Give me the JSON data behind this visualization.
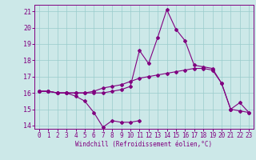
{
  "xlabel": "Windchill (Refroidissement éolien,°C)",
  "xlim": [
    -0.5,
    23.5
  ],
  "ylim": [
    13.8,
    21.4
  ],
  "yticks": [
    14,
    15,
    16,
    17,
    18,
    19,
    20,
    21
  ],
  "xticks": [
    0,
    1,
    2,
    3,
    4,
    5,
    6,
    7,
    8,
    9,
    10,
    11,
    12,
    13,
    14,
    15,
    16,
    17,
    18,
    19,
    20,
    21,
    22,
    23
  ],
  "bg_color": "#cce8e8",
  "line_color": "#800080",
  "grid_color": "#99cccc",
  "series": {
    "line1": [
      16.1,
      16.1,
      16.0,
      16.0,
      15.8,
      15.5,
      14.8,
      13.9,
      14.3,
      14.2,
      14.2,
      14.3,
      null,
      null,
      null,
      null,
      null,
      null,
      null,
      null,
      null,
      null,
      null,
      null
    ],
    "line2": [
      16.1,
      16.1,
      16.0,
      16.0,
      16.0,
      16.0,
      16.1,
      16.3,
      16.4,
      16.5,
      16.7,
      16.9,
      17.0,
      17.1,
      17.2,
      17.3,
      17.4,
      17.5,
      17.5,
      17.4,
      16.6,
      15.0,
      14.9,
      14.8
    ],
    "line3": [
      16.1,
      16.1,
      16.0,
      16.0,
      16.0,
      16.0,
      16.0,
      16.0,
      16.1,
      16.2,
      16.4,
      18.6,
      17.8,
      19.4,
      21.1,
      19.9,
      19.2,
      17.7,
      17.6,
      17.5,
      16.6,
      15.0,
      15.4,
      14.8
    ]
  }
}
